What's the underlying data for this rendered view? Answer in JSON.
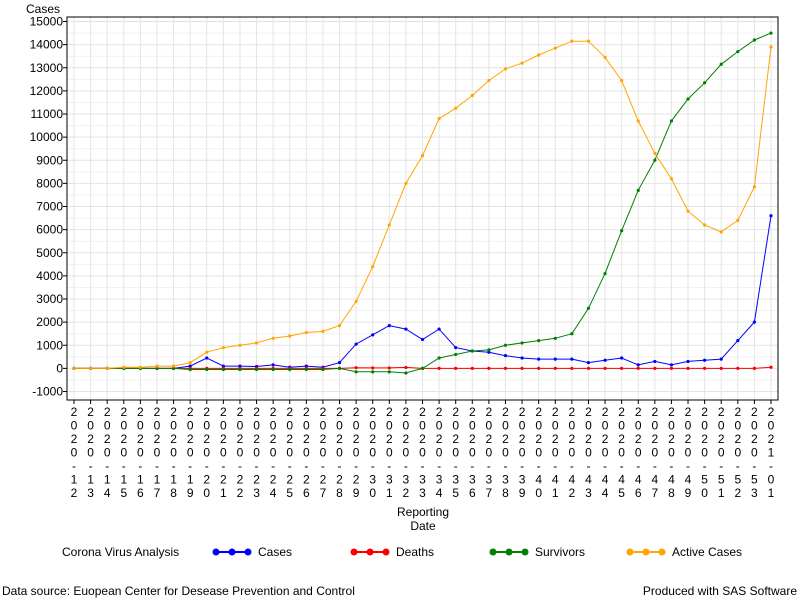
{
  "chart_data": {
    "type": "line",
    "ylabel": "Cases",
    "xlabel": [
      "Reporting",
      "Date"
    ],
    "ylim": [
      -1000,
      15000
    ],
    "yticks": [
      -1000,
      0,
      1000,
      2000,
      3000,
      4000,
      5000,
      6000,
      7000,
      8000,
      9000,
      10000,
      11000,
      12000,
      13000,
      14000,
      15000
    ],
    "grid": true,
    "x_tick_labels": [
      [
        "2",
        "0",
        "2",
        "0",
        "-",
        "1",
        "2"
      ],
      [
        "2",
        "0",
        "2",
        "0",
        "-",
        "1",
        "3"
      ],
      [
        "2",
        "0",
        "2",
        "0",
        "-",
        "1",
        "4"
      ],
      [
        "2",
        "0",
        "2",
        "0",
        "-",
        "1",
        "5"
      ],
      [
        "2",
        "0",
        "2",
        "0",
        "-",
        "1",
        "6"
      ],
      [
        "2",
        "0",
        "2",
        "0",
        "-",
        "1",
        "7"
      ],
      [
        "2",
        "0",
        "2",
        "0",
        "-",
        "1",
        "8"
      ],
      [
        "2",
        "0",
        "2",
        "0",
        "-",
        "1",
        "9"
      ],
      [
        "2",
        "0",
        "2",
        "0",
        "-",
        "2",
        "0"
      ],
      [
        "2",
        "0",
        "2",
        "0",
        "-",
        "2",
        "1"
      ],
      [
        "2",
        "0",
        "2",
        "0",
        "-",
        "2",
        "2"
      ],
      [
        "2",
        "0",
        "2",
        "0",
        "-",
        "2",
        "3"
      ],
      [
        "2",
        "0",
        "2",
        "0",
        "-",
        "2",
        "4"
      ],
      [
        "2",
        "0",
        "2",
        "0",
        "-",
        "2",
        "5"
      ],
      [
        "2",
        "0",
        "2",
        "0",
        "-",
        "2",
        "6"
      ],
      [
        "2",
        "0",
        "2",
        "0",
        "-",
        "2",
        "7"
      ],
      [
        "2",
        "0",
        "2",
        "0",
        "-",
        "2",
        "8"
      ],
      [
        "2",
        "0",
        "2",
        "0",
        "-",
        "2",
        "9"
      ],
      [
        "2",
        "0",
        "2",
        "0",
        "-",
        "3",
        "0"
      ],
      [
        "2",
        "0",
        "2",
        "0",
        "-",
        "3",
        "1"
      ],
      [
        "2",
        "0",
        "2",
        "0",
        "-",
        "3",
        "2"
      ],
      [
        "2",
        "0",
        "2",
        "0",
        "-",
        "3",
        "3"
      ],
      [
        "2",
        "0",
        "2",
        "0",
        "-",
        "3",
        "4"
      ],
      [
        "2",
        "0",
        "2",
        "0",
        "-",
        "3",
        "5"
      ],
      [
        "2",
        "0",
        "2",
        "0",
        "-",
        "3",
        "6"
      ],
      [
        "2",
        "0",
        "2",
        "0",
        "-",
        "3",
        "7"
      ],
      [
        "2",
        "0",
        "2",
        "0",
        "-",
        "3",
        "8"
      ],
      [
        "2",
        "0",
        "2",
        "0",
        "-",
        "3",
        "9"
      ],
      [
        "2",
        "0",
        "2",
        "0",
        "-",
        "4",
        "0"
      ],
      [
        "2",
        "0",
        "2",
        "0",
        "-",
        "4",
        "1"
      ],
      [
        "2",
        "0",
        "2",
        "0",
        "-",
        "4",
        "2"
      ],
      [
        "2",
        "0",
        "2",
        "0",
        "-",
        "4",
        "3"
      ],
      [
        "2",
        "0",
        "2",
        "0",
        "-",
        "4",
        "4"
      ],
      [
        "2",
        "0",
        "2",
        "0",
        "-",
        "4",
        "5"
      ],
      [
        "2",
        "0",
        "2",
        "0",
        "-",
        "4",
        "6"
      ],
      [
        "2",
        "0",
        "2",
        "0",
        "-",
        "4",
        "7"
      ],
      [
        "2",
        "0",
        "2",
        "0",
        "-",
        "4",
        "8"
      ],
      [
        "2",
        "0",
        "2",
        "0",
        "-",
        "4",
        "9"
      ],
      [
        "2",
        "0",
        "2",
        "0",
        "-",
        "5",
        "0"
      ],
      [
        "2",
        "0",
        "2",
        "0",
        "-",
        "5",
        "1"
      ],
      [
        "2",
        "0",
        "2",
        "0",
        "-",
        "5",
        "2"
      ],
      [
        "2",
        "0",
        "2",
        "0",
        "-",
        "5",
        "3"
      ],
      [
        "2",
        "0",
        "2",
        "1",
        "-",
        "0",
        "1"
      ]
    ],
    "series": [
      {
        "name": "Cases",
        "color": "#0000ff",
        "values": [
          0,
          0,
          0,
          0,
          0,
          0,
          0,
          100,
          450,
          100,
          100,
          80,
          150,
          50,
          100,
          50,
          250,
          1050,
          1450,
          1850,
          1700,
          1250,
          1700,
          900,
          750,
          700,
          550,
          450,
          400,
          400,
          400,
          250,
          350,
          450,
          150,
          300,
          150,
          300,
          350,
          400,
          1200,
          2000,
          6600
        ]
      },
      {
        "name": "Deaths",
        "color": "#ff0000",
        "values": [
          0,
          0,
          0,
          0,
          0,
          0,
          0,
          0,
          0,
          0,
          0,
          0,
          0,
          0,
          0,
          0,
          0,
          30,
          20,
          20,
          40,
          0,
          0,
          0,
          0,
          0,
          0,
          0,
          0,
          0,
          0,
          0,
          0,
          0,
          0,
          0,
          0,
          0,
          0,
          0,
          0,
          0,
          50
        ]
      },
      {
        "name": "Survivors",
        "color": "#008000",
        "values": [
          0,
          0,
          0,
          0,
          0,
          0,
          0,
          -50,
          -50,
          -50,
          -50,
          -50,
          -50,
          -50,
          -50,
          -50,
          0,
          -150,
          -150,
          -150,
          -200,
          0,
          450,
          600,
          750,
          800,
          1000,
          1100,
          1200,
          1300,
          1500,
          2600,
          4100,
          5950,
          7700,
          9000,
          10700,
          11650,
          12350,
          13150,
          13700,
          14200,
          14500
        ]
      },
      {
        "name": "Active Cases",
        "color": "#ffa500",
        "values": [
          0,
          0,
          0,
          50,
          50,
          100,
          100,
          250,
          700,
          900,
          1000,
          1100,
          1300,
          1400,
          1550,
          1600,
          1850,
          2900,
          4400,
          6200,
          8000,
          9200,
          10800,
          11250,
          11800,
          12450,
          12950,
          13200,
          13550,
          13850,
          14150,
          14150,
          13450,
          12450,
          10700,
          9300,
          8200,
          6800,
          6200,
          5900,
          6400,
          7850,
          13900
        ]
      }
    ],
    "legend": {
      "title": "Corona Virus Analysis",
      "placement": "bottom"
    }
  },
  "footer": {
    "source": "Data source: Euopean Center for Desease Prevention and Control",
    "produced_by": "Produced with SAS Software"
  }
}
